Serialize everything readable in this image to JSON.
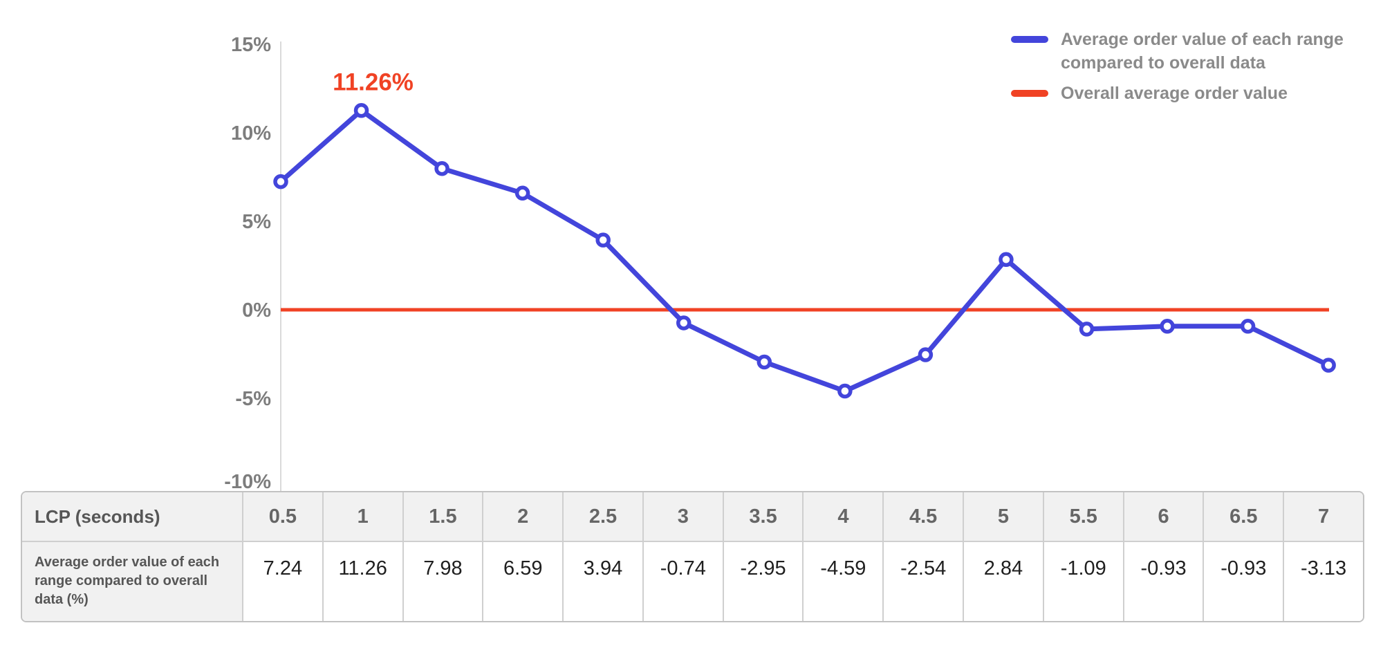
{
  "chart_data": {
    "type": "line",
    "title": "",
    "xlabel": "LCP (seconds)",
    "ylabel": "",
    "x": [
      0.5,
      1,
      1.5,
      2,
      2.5,
      3,
      3.5,
      4,
      4.5,
      5,
      5.5,
      6,
      6.5,
      7
    ],
    "series": [
      {
        "name": "Average order value of each range compared to overall data",
        "color": "#4345DB",
        "values": [
          7.24,
          11.26,
          7.98,
          6.59,
          3.94,
          -0.74,
          -2.95,
          -4.59,
          -2.54,
          2.84,
          -1.09,
          -0.93,
          -0.93,
          -3.13
        ]
      },
      {
        "name": "Overall average order value",
        "color": "#F04224",
        "type": "reference-line",
        "value": 0
      }
    ],
    "yticks": [
      {
        "value": 15,
        "label": "15%"
      },
      {
        "value": 10,
        "label": "10%"
      },
      {
        "value": 5,
        "label": "5%"
      },
      {
        "value": 0,
        "label": "0%"
      },
      {
        "value": -5,
        "label": "-5%"
      },
      {
        "value": -10,
        "label": "-10%"
      }
    ],
    "ylim": [
      -10,
      15
    ],
    "grid": false,
    "legend_position": "top-right",
    "annotation": {
      "text": "11.26%",
      "x": 1,
      "y": 11.26,
      "color": "#F04224"
    },
    "legend": [
      {
        "label": "Average order value of each range compared to overall data",
        "color": "#4345DB"
      },
      {
        "label": "Overall average order value",
        "color": "#F04224"
      }
    ]
  },
  "table": {
    "corner_label": "LCP (seconds)",
    "row_label": "Average order value of each range compared to overall data (%)",
    "columns": [
      "0.5",
      "1",
      "1.5",
      "2",
      "2.5",
      "3",
      "3.5",
      "4",
      "4.5",
      "5",
      "5.5",
      "6",
      "6.5",
      "7"
    ],
    "values": [
      "7.24",
      "11.26",
      "7.98",
      "6.59",
      "3.94",
      "-0.74",
      "-2.95",
      "-4.59",
      "-2.54",
      "2.84",
      "-1.09",
      "-0.93",
      "-0.93",
      "-3.13"
    ]
  },
  "colors": {
    "series_blue": "#4345DB",
    "baseline_red": "#F04224",
    "axis_text": "#7D7D7D",
    "legend_text": "#8A8A8A",
    "table_border": "#CFCFCF",
    "table_header_bg": "#F1F1F1",
    "table_header_text": "#666666",
    "table_value_text": "#1F1F1F",
    "table_label_text": "#565656"
  }
}
